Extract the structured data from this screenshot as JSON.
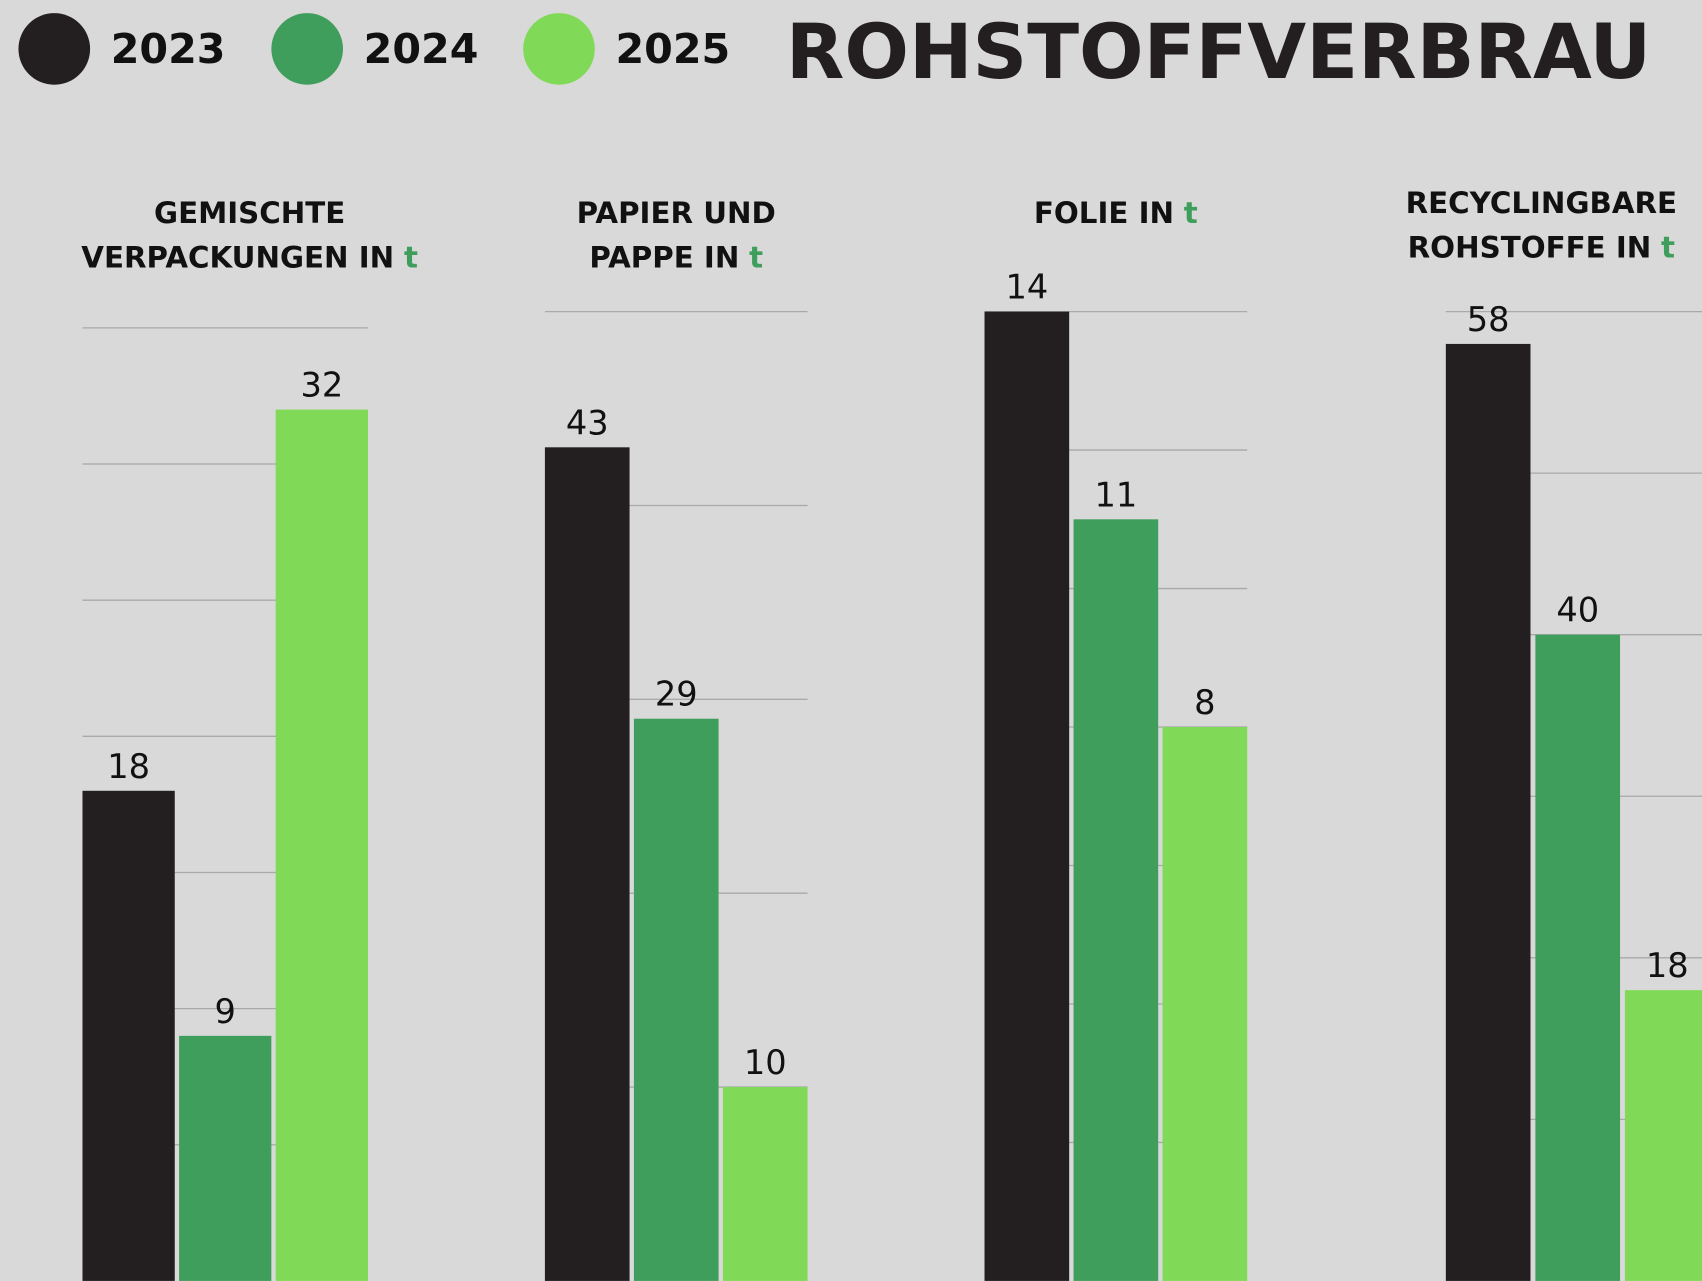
{
  "title": "ROHSTOFFVERBRAU",
  "legend": [
    {
      "name": "2023",
      "color": "#231f20"
    },
    {
      "name": "2024",
      "color": "#409e5c"
    },
    {
      "name": "2025",
      "color": "#80da58"
    }
  ],
  "chart_data": [
    {
      "type": "bar",
      "title": [
        "GEMISCHTE",
        "VERPACKUNGEN IN"
      ],
      "unit": "t",
      "values": [
        18,
        9,
        32
      ],
      "ylim": [
        0,
        35
      ],
      "yticks": [
        5,
        10,
        15,
        20,
        25,
        30,
        35
      ],
      "grid": true
    },
    {
      "type": "bar",
      "title": [
        "PAPIER UND",
        "PAPPE IN"
      ],
      "unit": "t",
      "values": [
        43,
        29,
        10
      ],
      "ylim": [
        0,
        50
      ],
      "yticks": [
        10,
        20,
        30,
        40,
        50
      ],
      "grid": true
    },
    {
      "type": "bar",
      "title": [
        "FOLIE IN"
      ],
      "unit": "t",
      "values": [
        14,
        11,
        8
      ],
      "ylim": [
        0,
        14
      ],
      "yticks": [
        2,
        4,
        6,
        8,
        10,
        12,
        14
      ],
      "grid": true
    },
    {
      "type": "bar",
      "title": [
        "RECYCLINGBARE",
        "ROHSTOFFE IN"
      ],
      "unit": "t",
      "values": [
        58,
        40,
        18
      ],
      "ylim": [
        0,
        60
      ],
      "yticks": [
        10,
        20,
        30,
        40,
        50,
        60
      ],
      "grid": true
    }
  ]
}
